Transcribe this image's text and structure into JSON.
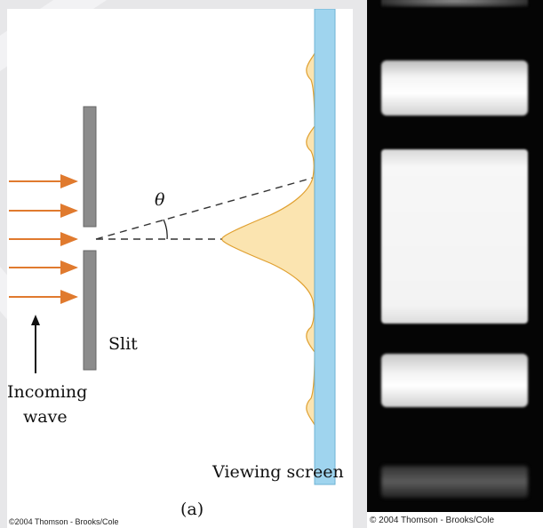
{
  "diagram": {
    "theta_label": "θ",
    "slit_label": "Slit",
    "incoming_label_line1": "Incoming",
    "incoming_label_line2": "wave",
    "screen_label": "Viewing screen",
    "panel_label": "(a)",
    "caption": "©2004 Thomson - Brooks/Cole",
    "colors": {
      "arrow": "#e07a2e",
      "slit": "#8c8c8c",
      "screen": "#9fd4ee",
      "intensity_fill": "#fbe4b0",
      "intensity_stroke": "#e0a030"
    }
  },
  "photo": {
    "caption": "© 2004 Thomson - Brooks/Cole",
    "bands": [
      "faint-top",
      "bright",
      "central-brightest",
      "bright",
      "faint-bottom"
    ]
  }
}
